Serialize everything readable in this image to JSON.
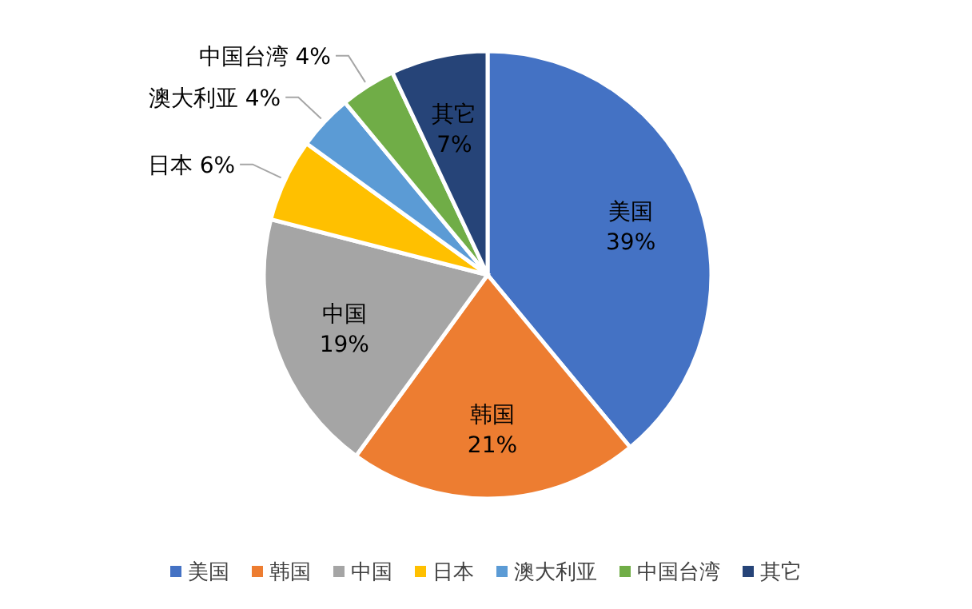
{
  "chart_data": {
    "type": "pie",
    "categories": [
      "美国",
      "韩国",
      "中国",
      "日本",
      "澳大利亚",
      "中国台湾",
      "其它"
    ],
    "values": [
      39,
      21,
      19,
      6,
      4,
      4,
      7
    ],
    "colors": [
      "#4472c4",
      "#ed7d31",
      "#a5a5a5",
      "#ffc000",
      "#5b9bd5",
      "#70ad47",
      "#264478"
    ],
    "value_labels": [
      "39%",
      "21%",
      "19%",
      "6%",
      "4%",
      "4%",
      "7%"
    ],
    "legend": "bottom"
  }
}
